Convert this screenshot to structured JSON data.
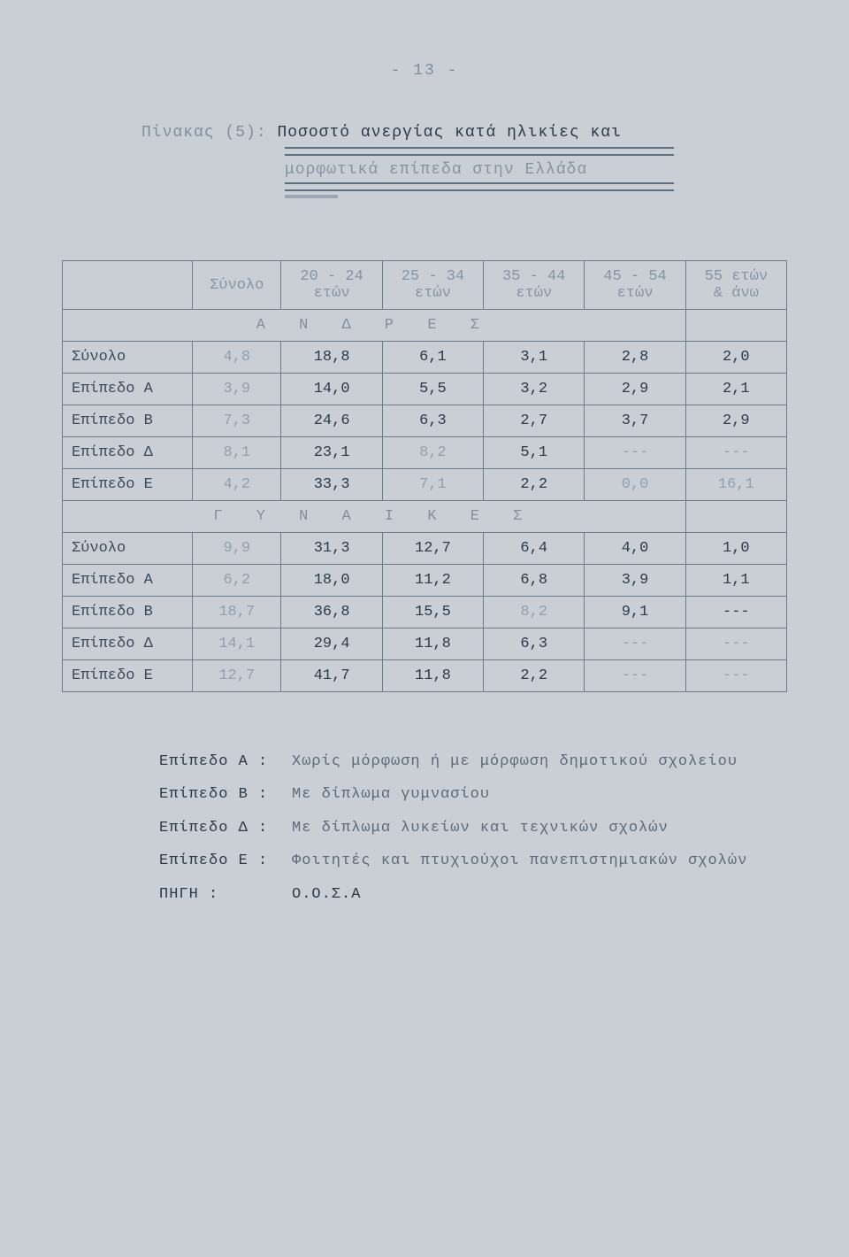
{
  "page_number": "- 13 -",
  "title_line1_prefix": "Πίνακας (5): ",
  "title_line1_strong": "Ποσοστό ανεργίας κατά ηλικίες και",
  "title_line2": "μορφωτικά επίπεδα στην Ελλάδα",
  "headers": {
    "c0": "",
    "c1": "Σύνολο",
    "c2a": "20 - 24",
    "c2b": "ετών",
    "c3a": "25 - 34",
    "c3b": "ετών",
    "c4a": "35 - 44",
    "c4b": "ετών",
    "c5a": "45 - 54",
    "c5b": "ετών",
    "c6a": "55 ετών",
    "c6b": "& άνω"
  },
  "section1": "Α Ν Δ Ρ Ε Σ",
  "section2": "Γ Υ Ν Α Ι Κ Ε Σ",
  "rows1": [
    {
      "label": "Σύνολο",
      "v": [
        "4,8",
        "18,8",
        "6,1",
        "3,1",
        "2,8",
        "2,0"
      ]
    },
    {
      "label": "Επίπεδο Α",
      "v": [
        "3,9",
        "14,0",
        "5,5",
        "3,2",
        "2,9",
        "2,1"
      ]
    },
    {
      "label": "Επίπεδο Β",
      "v": [
        "7,3",
        "24,6",
        "6,3",
        "2,7",
        "3,7",
        "2,9"
      ]
    },
    {
      "label": "Επίπεδο Δ",
      "v": [
        "8,1",
        "23,1",
        "8,2",
        "5,1",
        "---",
        "---"
      ]
    },
    {
      "label": "Επίπεδο Ε",
      "v": [
        "4,2",
        "33,3",
        "7,1",
        "2,2",
        "0,0",
        "16,1"
      ]
    }
  ],
  "rows2": [
    {
      "label": "Σύνολο",
      "v": [
        "9,9",
        "31,3",
        "12,7",
        "6,4",
        "4,0",
        "1,0"
      ]
    },
    {
      "label": "Επίπεδο Α",
      "v": [
        "6,2",
        "18,0",
        "11,2",
        "6,8",
        "3,9",
        "1,1"
      ]
    },
    {
      "label": "Επίπεδο Β",
      "v": [
        "18,7",
        "36,8",
        "15,5",
        "8,2",
        "9,1",
        "---"
      ]
    },
    {
      "label": "Επίπεδο Δ",
      "v": [
        "14,1",
        "29,4",
        "11,8",
        "6,3",
        "---",
        "---"
      ]
    },
    {
      "label": "Επίπεδο Ε",
      "v": [
        "12,7",
        "41,7",
        "11,8",
        "2,2",
        "---",
        "---"
      ]
    }
  ],
  "legend": {
    "a_label": "Επίπεδο Α :",
    "a_text": "Χωρίς μόρφωση ή με μόρφωση δημοτικού σχολείου",
    "b_label": "Επίπεδο Β :",
    "b_text": "Με δίπλωμα γυμνασίου",
    "d_label": "Επίπεδο Δ :",
    "d_text": "Με δίπλωμα λυκείων και τεχνικών σχολών",
    "e_label": "Επίπεδο Ε :",
    "e_text": "Φοιτητές και πτυχιούχοι πανεπιστημιακών σχολών",
    "src_label": "ΠΗΓΗ :",
    "src_text": "Ο.Ο.Σ.Α"
  },
  "faded_cols_section1": {
    "0": [
      0
    ],
    "1": [
      0
    ],
    "2": [
      0
    ],
    "3": [
      0,
      2,
      4,
      5
    ],
    "4": [
      0,
      2,
      4,
      5
    ]
  },
  "faded_cols_section2": {
    "0": [
      0
    ],
    "1": [
      0
    ],
    "2": [
      0,
      3
    ],
    "3": [
      0,
      4,
      5
    ],
    "4": [
      0,
      4,
      5
    ]
  }
}
